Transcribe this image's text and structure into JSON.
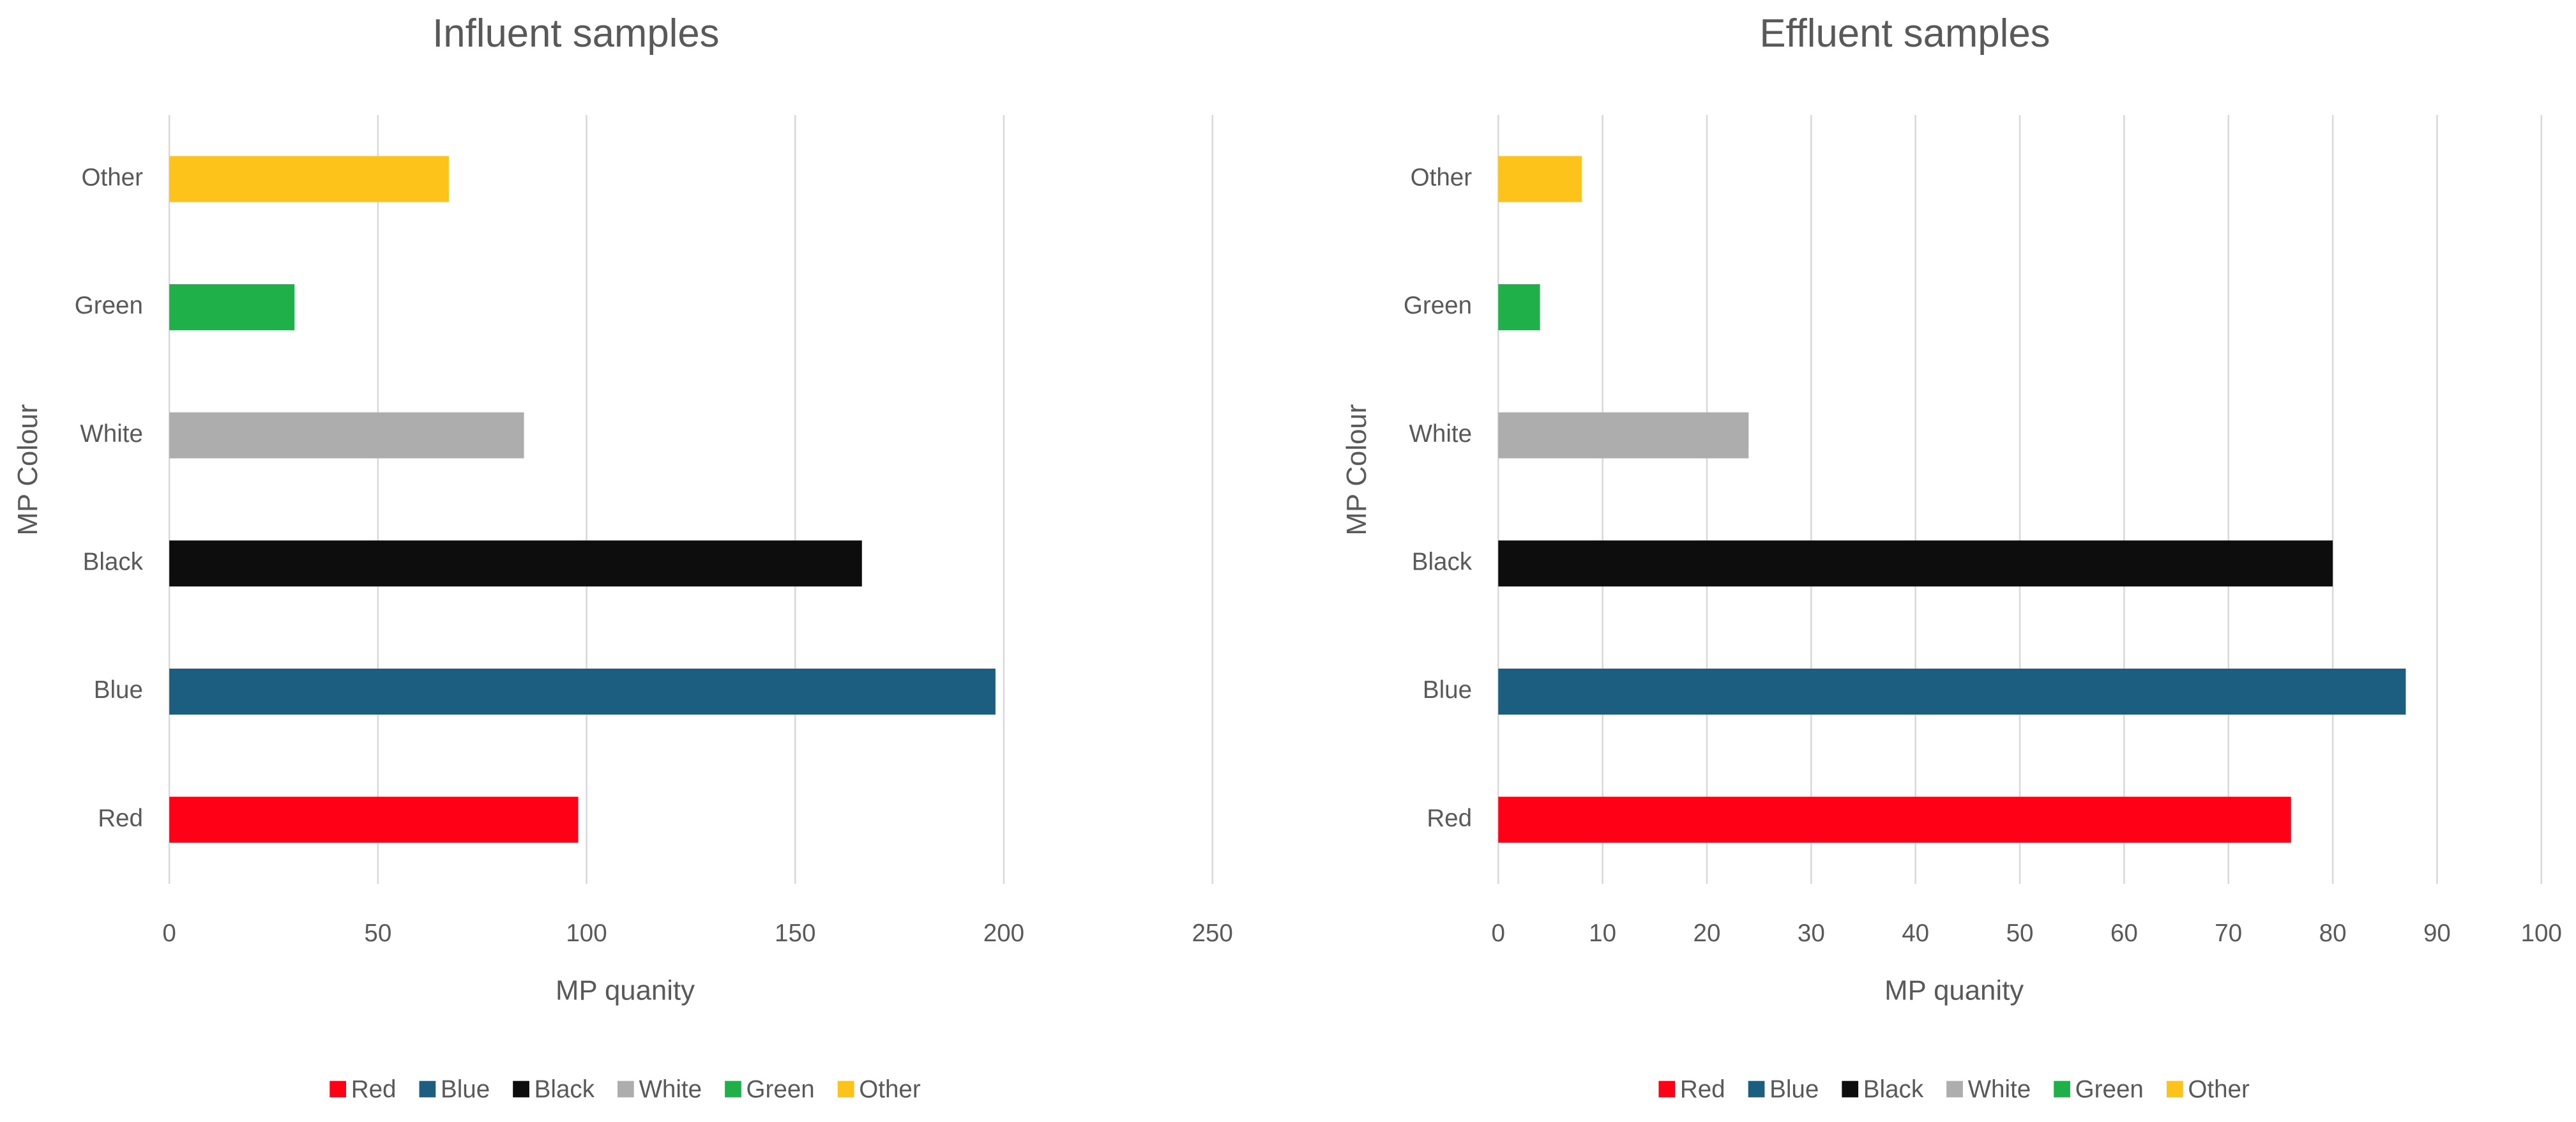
{
  "chart_data": [
    {
      "type": "bar",
      "orientation": "horizontal",
      "title": "Influent samples",
      "x_label": "MP quanity",
      "y_label": "MP Colour",
      "categories": [
        "Red",
        "Blue",
        "Black",
        "White",
        "Green",
        "Other"
      ],
      "values": [
        98,
        198,
        166,
        85,
        30,
        67
      ],
      "colors": [
        "#ff0016",
        "#1b5e80",
        "#0d0d0d",
        "#adadad",
        "#1fb04a",
        "#fec31a"
      ],
      "xlim": [
        0,
        250
      ],
      "xticks": [
        0,
        50,
        100,
        150,
        200,
        250
      ],
      "grid": true,
      "legend": "bottom"
    },
    {
      "type": "bar",
      "orientation": "horizontal",
      "title": "Effluent samples",
      "x_label": "MP quanity",
      "y_label": "MP Colour",
      "categories": [
        "Red",
        "Blue",
        "Black",
        "White",
        "Green",
        "Other"
      ],
      "values": [
        76,
        87,
        80,
        24,
        4,
        8
      ],
      "colors": [
        "#ff0016",
        "#1b5e80",
        "#0d0d0d",
        "#adadad",
        "#1fb04a",
        "#fec31a"
      ],
      "xlim": [
        0,
        100
      ],
      "xticks": [
        0,
        10,
        20,
        30,
        40,
        50,
        60,
        70,
        80,
        90,
        100
      ],
      "grid": true,
      "legend": "bottom"
    }
  ]
}
